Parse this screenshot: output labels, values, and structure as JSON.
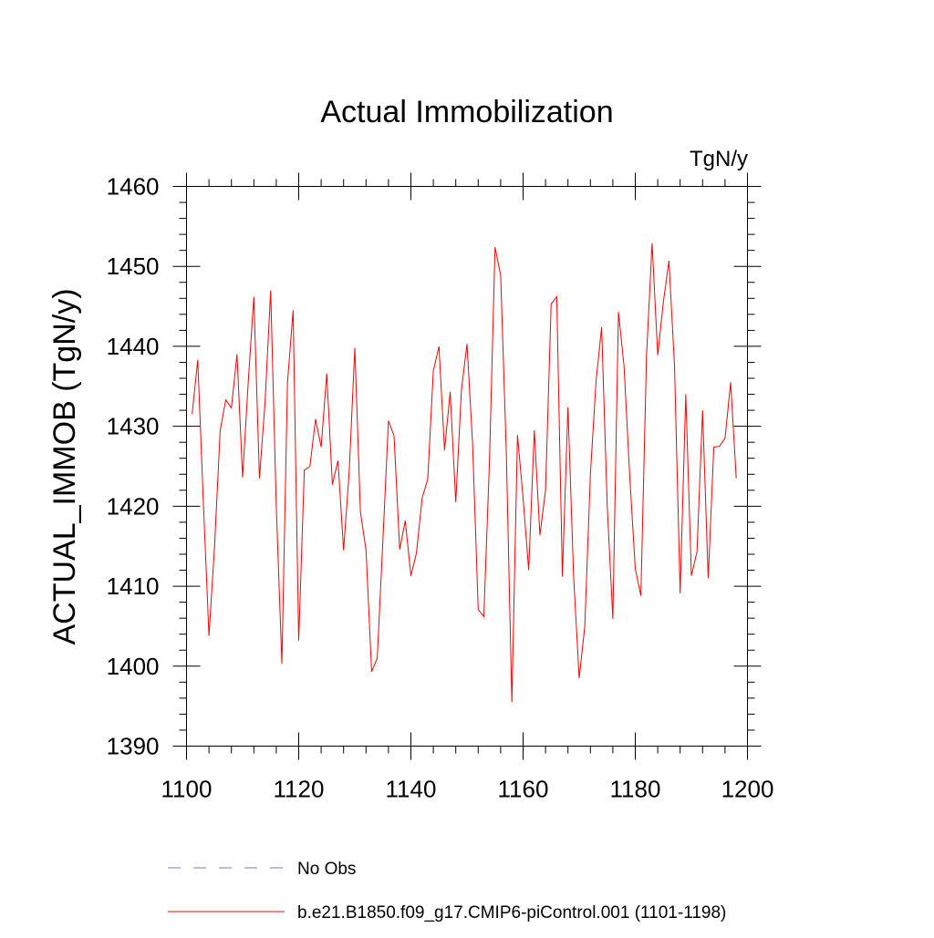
{
  "chart_data": {
    "type": "line",
    "title": "Actual Immobilization",
    "units_label": "TgN/y",
    "ylabel": "ACTUAL_IMMOB  (TgN/y)",
    "xlabel": "",
    "xlim": [
      1100,
      1200
    ],
    "ylim": [
      1390,
      1460
    ],
    "x_ticks": [
      1100,
      1120,
      1140,
      1160,
      1180,
      1200
    ],
    "y_ticks": [
      1390,
      1400,
      1410,
      1420,
      1430,
      1440,
      1450,
      1460
    ],
    "grid": false,
    "legend_position": "bottom",
    "series": [
      {
        "name": "No Obs",
        "color": "#7777cc",
        "style": "dashed",
        "x": [],
        "values": []
      },
      {
        "name": "b.e21.B1850.f09_g17.CMIP6-piControl.001 (1101-1198)",
        "color": "#ff0000",
        "style": "solid",
        "x": [
          1101,
          1102,
          1103,
          1104,
          1105,
          1106,
          1107,
          1108,
          1109,
          1110,
          1111,
          1112,
          1113,
          1114,
          1115,
          1116,
          1117,
          1118,
          1119,
          1120,
          1121,
          1122,
          1123,
          1124,
          1125,
          1126,
          1127,
          1128,
          1129,
          1130,
          1131,
          1132,
          1133,
          1134,
          1135,
          1136,
          1137,
          1138,
          1139,
          1140,
          1141,
          1142,
          1143,
          1144,
          1145,
          1146,
          1147,
          1148,
          1149,
          1150,
          1151,
          1152,
          1153,
          1154,
          1155,
          1156,
          1157,
          1158,
          1159,
          1160,
          1161,
          1162,
          1163,
          1164,
          1165,
          1166,
          1167,
          1168,
          1169,
          1170,
          1171,
          1172,
          1173,
          1174,
          1175,
          1176,
          1177,
          1178,
          1179,
          1180,
          1181,
          1182,
          1183,
          1184,
          1185,
          1186,
          1187,
          1188,
          1189,
          1190,
          1191,
          1192,
          1193,
          1194,
          1195,
          1196,
          1197,
          1198
        ],
        "values": [
          1431.5,
          1438.3,
          1420.5,
          1403.8,
          1415.0,
          1429.5,
          1433.3,
          1432.3,
          1439.0,
          1423.6,
          1435.5,
          1446.2,
          1423.5,
          1433.0,
          1447.0,
          1420.0,
          1400.3,
          1435.5,
          1444.5,
          1403.2,
          1424.5,
          1425.0,
          1430.9,
          1427.4,
          1436.6,
          1422.7,
          1425.7,
          1414.5,
          1424.3,
          1439.8,
          1419.3,
          1414.5,
          1399.3,
          1401.0,
          1415.6,
          1430.7,
          1428.8,
          1414.6,
          1418.2,
          1411.3,
          1414.2,
          1421.0,
          1423.4,
          1436.9,
          1440.0,
          1427.0,
          1434.3,
          1420.5,
          1434.5,
          1440.3,
          1427.8,
          1407.1,
          1406.2,
          1425.5,
          1452.4,
          1448.9,
          1427.0,
          1395.5,
          1428.9,
          1421.0,
          1412.0,
          1429.5,
          1416.4,
          1422.0,
          1445.3,
          1446.2,
          1411.2,
          1432.4,
          1411.3,
          1398.5,
          1405.0,
          1424.0,
          1435.6,
          1442.4,
          1420.0,
          1405.9,
          1444.3,
          1437.5,
          1423.9,
          1412.2,
          1408.8,
          1438.8,
          1452.9,
          1438.9,
          1445.5,
          1450.7,
          1437.5,
          1409.1,
          1434.0,
          1411.3,
          1414.3,
          1432.0,
          1411.0,
          1427.4,
          1427.5,
          1428.5,
          1435.5,
          1423.5
        ]
      }
    ]
  }
}
